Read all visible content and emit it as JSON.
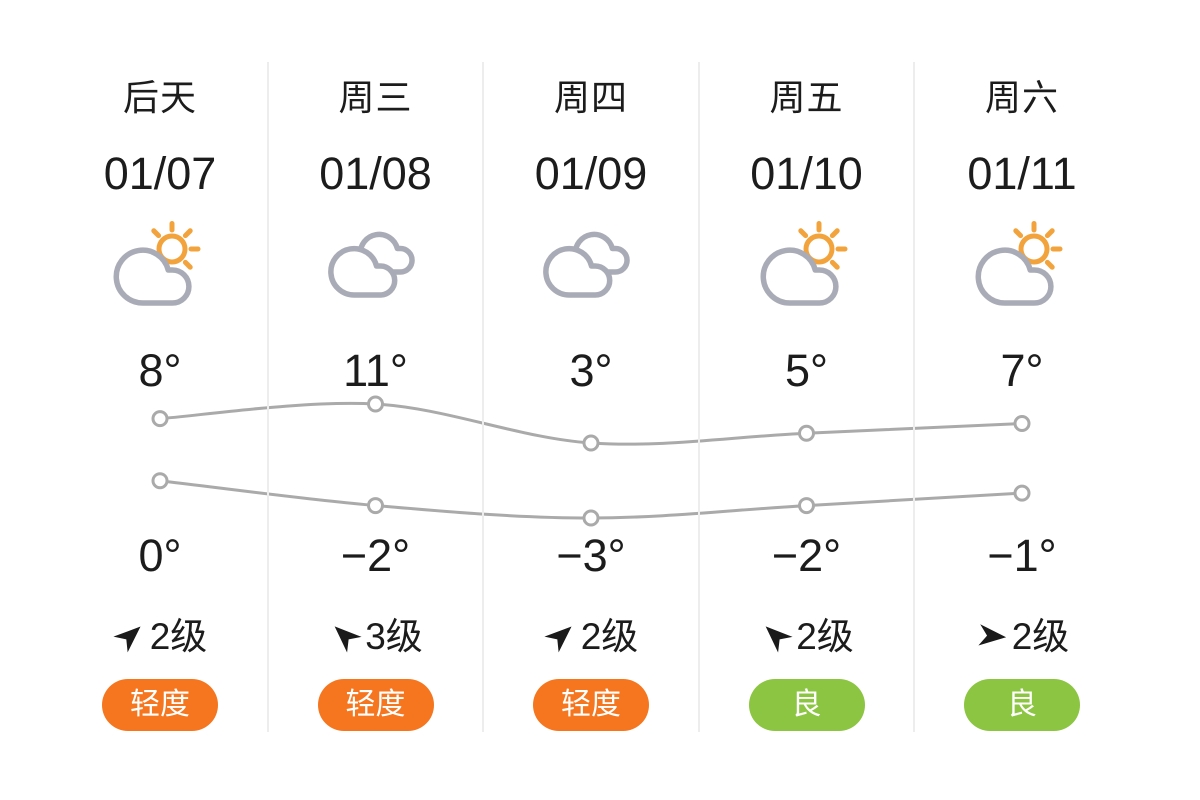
{
  "widget": {
    "type": "weather-5day-forecast",
    "background": "#ffffff"
  },
  "days": [
    {
      "day_label": "后天",
      "date": "01/07",
      "condition": "partly-cloudy",
      "high": "8°",
      "low": "0°",
      "wind": {
        "direction": "NE",
        "level": "2级"
      },
      "air": {
        "label": "轻度",
        "level": "light"
      }
    },
    {
      "day_label": "周三",
      "date": "01/08",
      "condition": "cloudy",
      "high": "11°",
      "low": "−2°",
      "wind": {
        "direction": "NW",
        "level": "3级"
      },
      "air": {
        "label": "轻度",
        "level": "light"
      }
    },
    {
      "day_label": "周四",
      "date": "01/09",
      "condition": "cloudy",
      "high": "3°",
      "low": "−3°",
      "wind": {
        "direction": "NE",
        "level": "2级"
      },
      "air": {
        "label": "轻度",
        "level": "light"
      }
    },
    {
      "day_label": "周五",
      "date": "01/10",
      "condition": "partly-cloudy",
      "high": "5°",
      "low": "−2°",
      "wind": {
        "direction": "NW",
        "level": "2级"
      },
      "air": {
        "label": "良",
        "level": "good"
      }
    },
    {
      "day_label": "周六",
      "date": "01/11",
      "condition": "partly-cloudy",
      "high": "7°",
      "low": "−1°",
      "wind": {
        "direction": "E",
        "level": "2级"
      },
      "air": {
        "label": "良",
        "level": "good"
      }
    }
  ],
  "air_levels": {
    "light": {
      "color": "#F5761E",
      "text_color": "#ffffff"
    },
    "good": {
      "color": "#8CC542",
      "text_color": "#ffffff"
    }
  },
  "icon_colors": {
    "cloud": "#A9ACB6",
    "sun": "#F3A33C",
    "wind_arrow": "#1a1a1a"
  },
  "chart_data": {
    "type": "line",
    "categories": [
      "01/07",
      "01/08",
      "01/09",
      "01/10",
      "01/11"
    ],
    "series": [
      {
        "name": "high_temp",
        "values": [
          8,
          11,
          3,
          5,
          7
        ]
      },
      {
        "name": "low_temp",
        "values": [
          0,
          -2,
          -3,
          -2,
          -1
        ]
      }
    ],
    "unit": "°",
    "line_color": "#aaaaaa",
    "point_style": "open-circle",
    "grid": false,
    "legend": false
  },
  "divider_color": "#ededed",
  "text_color": "#1c1c1c"
}
